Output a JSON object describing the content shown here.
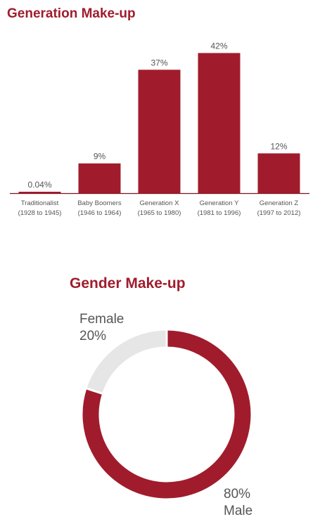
{
  "colors": {
    "accent": "#a01c2c",
    "neutral": "#e6e6e6",
    "text": "#555555"
  },
  "chart_data": [
    {
      "type": "bar",
      "title": "Generation Make-up",
      "categories": [
        {
          "line1": "Traditionalist",
          "line2": "(1928 to 1945)"
        },
        {
          "line1": "Baby Boomers",
          "line2": "(1946 to 1964)"
        },
        {
          "line1": "Generation X",
          "line2": "(1965 to 1980)"
        },
        {
          "line1": "Generation Y",
          "line2": "(1981 to 1996)"
        },
        {
          "line1": "Generation Z",
          "line2": "(1997 to 2012)"
        }
      ],
      "values": [
        0.04,
        9,
        37,
        42,
        12
      ],
      "value_labels": [
        "0.04%",
        "9%",
        "37%",
        "42%",
        "12%"
      ],
      "unit": "%",
      "ylim": [
        0,
        42
      ],
      "grid": false,
      "legend": "none"
    },
    {
      "type": "pie",
      "title": "Gender Make-up",
      "slices": [
        {
          "label": "Male",
          "value": 80,
          "value_label": "80%"
        },
        {
          "label": "Female",
          "value": 20,
          "value_label": "20%"
        }
      ],
      "unit": "%"
    }
  ]
}
